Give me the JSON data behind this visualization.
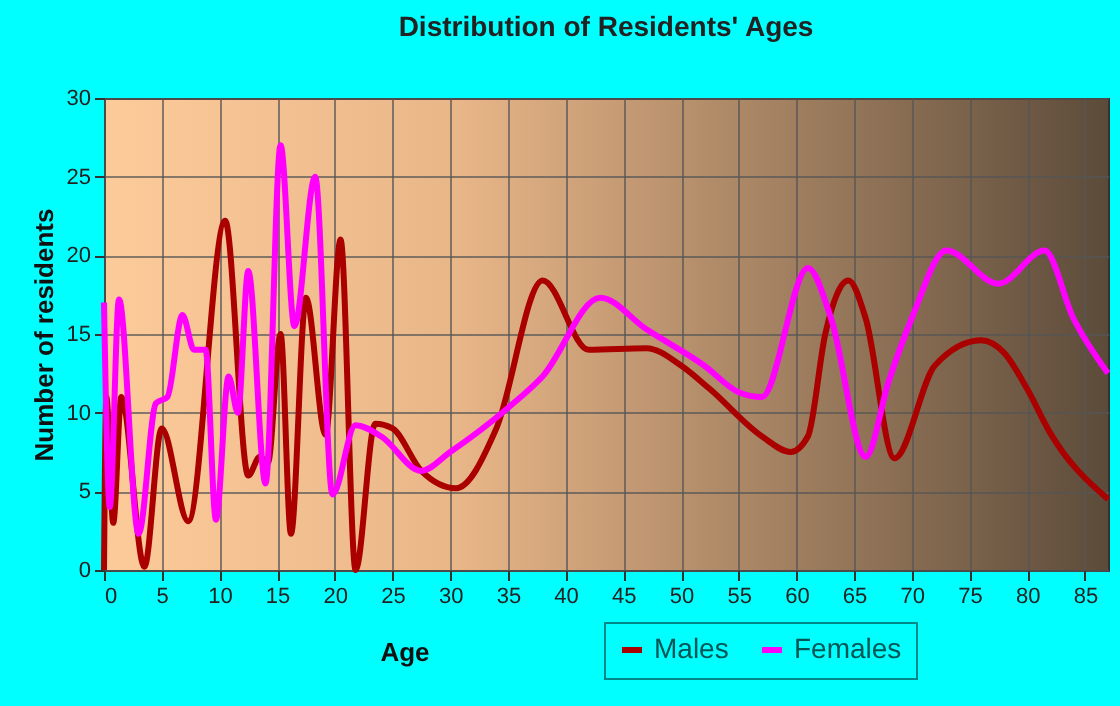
{
  "chart_data": {
    "type": "line",
    "title": "Distribution of Residents' Ages",
    "xlabel": "Age",
    "ylabel": "Number of residents",
    "xlim": [
      0,
      87
    ],
    "xticks": [
      0,
      5,
      10,
      15,
      20,
      25,
      30,
      35,
      40,
      45,
      50,
      55,
      60,
      65,
      70,
      75,
      80,
      85
    ],
    "ylim": [
      0,
      30
    ],
    "yticks": [
      0,
      5,
      10,
      15,
      20,
      25,
      30
    ],
    "grid": true,
    "legend": "bottom",
    "series": [
      {
        "name": "Males",
        "color": "#aa0000",
        "x": [
          0,
          0.2,
          0.8,
          1.5,
          3.5,
          5,
          7.3,
          10.5,
          12.5,
          13.5,
          14.2,
          15.3,
          16.2,
          17.5,
          19.2,
          20.5,
          21.8,
          23.5,
          25,
          27.5,
          30.5,
          34,
          38,
          42,
          47,
          50,
          52.5,
          57,
          59.5,
          61,
          62.5,
          64.5,
          66,
          68.5,
          72,
          76,
          78,
          80,
          82,
          87
        ],
        "values": [
          0,
          11,
          3,
          11,
          0.2,
          9,
          3.1,
          22.2,
          6,
          7.2,
          6.8,
          15,
          2.3,
          17.3,
          8.6,
          21,
          0,
          9.3,
          9,
          6.3,
          5.2,
          9,
          18.4,
          14,
          14.1,
          13,
          11.5,
          8.5,
          7.5,
          8.5,
          15,
          18.4,
          16,
          7.1,
          13,
          14.6,
          13.8,
          11.5,
          8.7,
          4.5
        ]
      },
      {
        "name": "Females",
        "color": "#ff00ff",
        "x": [
          0,
          0.5,
          1.3,
          3,
          4.5,
          5.5,
          6.8,
          7.8,
          8.8,
          9.7,
          10.8,
          11.6,
          12.5,
          14,
          15.3,
          16.5,
          18.3,
          19.8,
          21.8,
          24,
          27.5,
          30,
          35,
          38,
          43,
          47,
          52,
          55,
          57,
          61,
          63,
          66,
          68,
          70,
          73,
          77.5,
          81.5,
          84,
          87
        ],
        "values": [
          17,
          4,
          17.2,
          2.3,
          10.6,
          11,
          16.2,
          14,
          14,
          3.2,
          12.3,
          10,
          19,
          5.5,
          27,
          15.5,
          25,
          4.8,
          9.2,
          8.5,
          6.3,
          7.5,
          10.3,
          12.3,
          17.3,
          15.3,
          13,
          11.3,
          11,
          19.2,
          16,
          7.2,
          12,
          16,
          20.3,
          18.2,
          20.3,
          16,
          12.5
        ]
      }
    ]
  }
}
